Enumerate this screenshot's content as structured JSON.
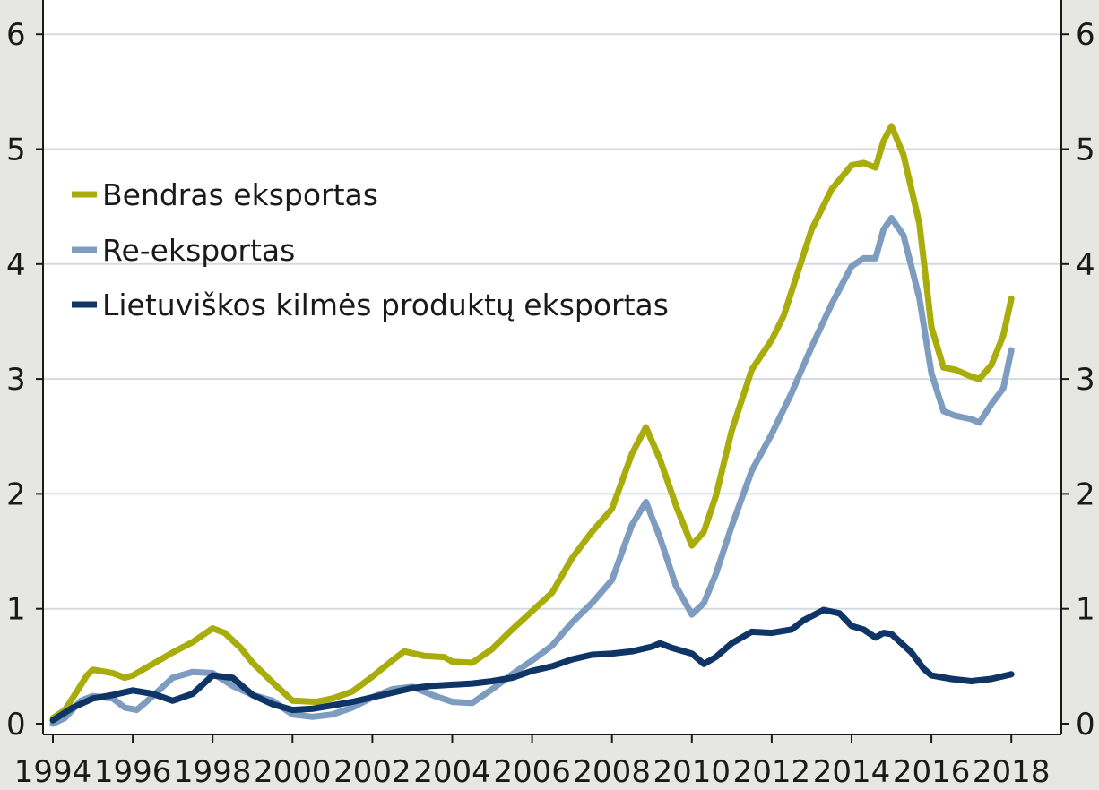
{
  "chart_data": {
    "type": "line",
    "title": "",
    "xlabel": "",
    "ylabel": "",
    "xlim": [
      1994,
      2019.2
    ],
    "ylim": [
      0,
      6
    ],
    "x_ticks": [
      1994,
      1996,
      1998,
      2000,
      2002,
      2004,
      2006,
      2008,
      2010,
      2012,
      2014,
      2016,
      2018
    ],
    "x_tick_labels": [
      "1994",
      "1996",
      "1998",
      "2000",
      "2002",
      "2004",
      "2006",
      "2008",
      "2010",
      "2012",
      "2014",
      "2016",
      "2018"
    ],
    "y_ticks": [
      0,
      1,
      2,
      3,
      4,
      5,
      6
    ],
    "y_tick_labels": [
      "0",
      "1",
      "2",
      "3",
      "4",
      "5",
      "6"
    ],
    "y_axis_right_mirrored": true,
    "grid": "horizontal",
    "legend_placement": "upper-left",
    "series": [
      {
        "name": "Bendras eksportas",
        "color": "#a8ad0c",
        "points": [
          [
            1994.0,
            0.05
          ],
          [
            1994.3,
            0.12
          ],
          [
            1994.6,
            0.28
          ],
          [
            1994.85,
            0.42
          ],
          [
            1995.0,
            0.47
          ],
          [
            1995.5,
            0.44
          ],
          [
            1995.8,
            0.4
          ],
          [
            1996.0,
            0.42
          ],
          [
            1996.5,
            0.52
          ],
          [
            1997.0,
            0.62
          ],
          [
            1997.5,
            0.71
          ],
          [
            1998.0,
            0.83
          ],
          [
            1998.3,
            0.79
          ],
          [
            1998.7,
            0.66
          ],
          [
            1999.0,
            0.53
          ],
          [
            1999.5,
            0.36
          ],
          [
            2000.0,
            0.2
          ],
          [
            2000.6,
            0.19
          ],
          [
            2001.0,
            0.22
          ],
          [
            2001.5,
            0.28
          ],
          [
            2002.0,
            0.41
          ],
          [
            2002.5,
            0.55
          ],
          [
            2002.8,
            0.63
          ],
          [
            2003.3,
            0.59
          ],
          [
            2003.8,
            0.58
          ],
          [
            2004.0,
            0.54
          ],
          [
            2004.5,
            0.53
          ],
          [
            2005.0,
            0.65
          ],
          [
            2005.5,
            0.82
          ],
          [
            2006.0,
            0.98
          ],
          [
            2006.5,
            1.14
          ],
          [
            2007.0,
            1.44
          ],
          [
            2007.5,
            1.67
          ],
          [
            2008.0,
            1.87
          ],
          [
            2008.5,
            2.35
          ],
          [
            2008.85,
            2.58
          ],
          [
            2009.2,
            2.3
          ],
          [
            2009.6,
            1.9
          ],
          [
            2010.0,
            1.55
          ],
          [
            2010.3,
            1.67
          ],
          [
            2010.6,
            1.98
          ],
          [
            2011.0,
            2.55
          ],
          [
            2011.5,
            3.08
          ],
          [
            2012.0,
            3.34
          ],
          [
            2012.3,
            3.55
          ],
          [
            2012.7,
            3.98
          ],
          [
            2013.0,
            4.3
          ],
          [
            2013.5,
            4.65
          ],
          [
            2014.0,
            4.86
          ],
          [
            2014.3,
            4.88
          ],
          [
            2014.6,
            4.84
          ],
          [
            2014.8,
            5.07
          ],
          [
            2015.0,
            5.2
          ],
          [
            2015.3,
            4.95
          ],
          [
            2015.7,
            4.35
          ],
          [
            2016.0,
            3.45
          ],
          [
            2016.3,
            3.1
          ],
          [
            2016.6,
            3.08
          ],
          [
            2017.0,
            3.02
          ],
          [
            2017.2,
            3.0
          ],
          [
            2017.5,
            3.12
          ],
          [
            2017.8,
            3.38
          ],
          [
            2018.0,
            3.7
          ]
        ]
      },
      {
        "name": "Re-eksportas",
        "color": "#7d9cc0",
        "points": [
          [
            1994.0,
            0.0
          ],
          [
            1994.3,
            0.05
          ],
          [
            1994.7,
            0.2
          ],
          [
            1995.0,
            0.24
          ],
          [
            1995.5,
            0.22
          ],
          [
            1995.8,
            0.14
          ],
          [
            1996.1,
            0.12
          ],
          [
            1996.5,
            0.24
          ],
          [
            1997.0,
            0.4
          ],
          [
            1997.5,
            0.45
          ],
          [
            1998.0,
            0.44
          ],
          [
            1998.5,
            0.33
          ],
          [
            1999.0,
            0.25
          ],
          [
            1999.5,
            0.2
          ],
          [
            2000.0,
            0.08
          ],
          [
            2000.5,
            0.06
          ],
          [
            2001.0,
            0.08
          ],
          [
            2001.5,
            0.14
          ],
          [
            2002.0,
            0.23
          ],
          [
            2002.5,
            0.3
          ],
          [
            2003.0,
            0.32
          ],
          [
            2003.5,
            0.25
          ],
          [
            2004.0,
            0.19
          ],
          [
            2004.5,
            0.18
          ],
          [
            2005.0,
            0.3
          ],
          [
            2005.5,
            0.43
          ],
          [
            2006.0,
            0.55
          ],
          [
            2006.5,
            0.68
          ],
          [
            2007.0,
            0.88
          ],
          [
            2007.5,
            1.05
          ],
          [
            2008.0,
            1.25
          ],
          [
            2008.5,
            1.73
          ],
          [
            2008.85,
            1.93
          ],
          [
            2009.2,
            1.62
          ],
          [
            2009.6,
            1.2
          ],
          [
            2010.0,
            0.95
          ],
          [
            2010.3,
            1.05
          ],
          [
            2010.6,
            1.3
          ],
          [
            2011.0,
            1.72
          ],
          [
            2011.5,
            2.2
          ],
          [
            2012.0,
            2.52
          ],
          [
            2012.5,
            2.88
          ],
          [
            2013.0,
            3.28
          ],
          [
            2013.5,
            3.65
          ],
          [
            2014.0,
            3.98
          ],
          [
            2014.3,
            4.05
          ],
          [
            2014.6,
            4.05
          ],
          [
            2014.8,
            4.3
          ],
          [
            2015.0,
            4.4
          ],
          [
            2015.3,
            4.25
          ],
          [
            2015.7,
            3.7
          ],
          [
            2016.0,
            3.05
          ],
          [
            2016.3,
            2.72
          ],
          [
            2016.6,
            2.68
          ],
          [
            2017.0,
            2.65
          ],
          [
            2017.2,
            2.62
          ],
          [
            2017.5,
            2.78
          ],
          [
            2017.8,
            2.92
          ],
          [
            2018.0,
            3.25
          ]
        ]
      },
      {
        "name": "Lietuviškos kilmės produktų eksportas",
        "color": "#0f3567",
        "points": [
          [
            1994.0,
            0.03
          ],
          [
            1994.5,
            0.14
          ],
          [
            1995.0,
            0.22
          ],
          [
            1995.5,
            0.25
          ],
          [
            1996.0,
            0.29
          ],
          [
            1996.5,
            0.26
          ],
          [
            1997.0,
            0.2
          ],
          [
            1997.5,
            0.26
          ],
          [
            1998.0,
            0.42
          ],
          [
            1998.5,
            0.4
          ],
          [
            1999.0,
            0.25
          ],
          [
            1999.5,
            0.17
          ],
          [
            2000.0,
            0.12
          ],
          [
            2000.5,
            0.13
          ],
          [
            2001.0,
            0.16
          ],
          [
            2001.5,
            0.19
          ],
          [
            2002.0,
            0.23
          ],
          [
            2002.5,
            0.27
          ],
          [
            2003.0,
            0.31
          ],
          [
            2003.5,
            0.33
          ],
          [
            2004.0,
            0.34
          ],
          [
            2004.5,
            0.35
          ],
          [
            2005.0,
            0.37
          ],
          [
            2005.5,
            0.4
          ],
          [
            2006.0,
            0.46
          ],
          [
            2006.5,
            0.5
          ],
          [
            2007.0,
            0.56
          ],
          [
            2007.5,
            0.6
          ],
          [
            2008.0,
            0.61
          ],
          [
            2008.5,
            0.63
          ],
          [
            2009.0,
            0.67
          ],
          [
            2009.2,
            0.7
          ],
          [
            2009.5,
            0.66
          ],
          [
            2010.0,
            0.61
          ],
          [
            2010.3,
            0.52
          ],
          [
            2010.6,
            0.58
          ],
          [
            2011.0,
            0.7
          ],
          [
            2011.5,
            0.8
          ],
          [
            2012.0,
            0.79
          ],
          [
            2012.5,
            0.82
          ],
          [
            2012.8,
            0.9
          ],
          [
            2013.3,
            0.99
          ],
          [
            2013.7,
            0.96
          ],
          [
            2014.0,
            0.85
          ],
          [
            2014.3,
            0.82
          ],
          [
            2014.6,
            0.75
          ],
          [
            2014.8,
            0.79
          ],
          [
            2015.0,
            0.78
          ],
          [
            2015.5,
            0.62
          ],
          [
            2015.8,
            0.48
          ],
          [
            2016.0,
            0.42
          ],
          [
            2016.5,
            0.39
          ],
          [
            2017.0,
            0.37
          ],
          [
            2017.5,
            0.39
          ],
          [
            2018.0,
            0.43
          ]
        ]
      }
    ]
  }
}
